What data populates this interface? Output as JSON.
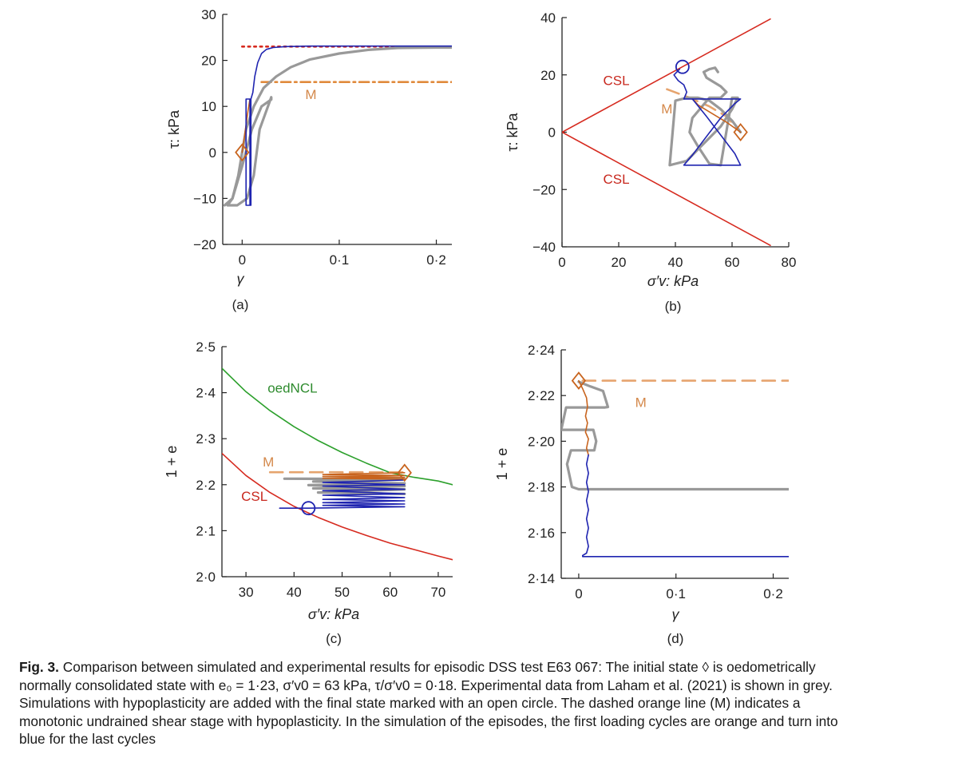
{
  "chart_data": [
    {
      "id": "a",
      "type": "line",
      "panel_label": "(a)",
      "xlabel": "γ",
      "ylabel": "τ: kPa",
      "xlim": [
        -0.02,
        0.216
      ],
      "ylim": [
        -20,
        30
      ],
      "xticks": [
        0,
        0.1,
        0.2
      ],
      "xtick_labels": [
        "0",
        "0·1",
        "0·2"
      ],
      "yticks": [
        -20,
        -10,
        0,
        10,
        20,
        30
      ],
      "ytick_labels": [
        "−20",
        "−10",
        "0",
        "10",
        "20",
        "30"
      ],
      "annotations": [
        {
          "text": "M",
          "x": 0.065,
          "y": 11.6,
          "color": "#d4884a"
        }
      ],
      "series": [
        {
          "name": "CSL (red dotted)",
          "color": "#d62a1f",
          "style": "dotted",
          "x": [
            0.0,
            0.216
          ],
          "y": [
            23,
            23
          ]
        },
        {
          "name": "M (orange dash-dot)",
          "color": "#e08a3c",
          "style": "dashdot",
          "x": [
            0.02,
            0.216
          ],
          "y": [
            15.3,
            15.3
          ]
        },
        {
          "name": "Experiment (grey)",
          "color": "#999999",
          "style": "solid",
          "x": [
            -0.018,
            -0.01,
            -0.004,
            0.0,
            0.004,
            0.012,
            0.022,
            0.035,
            0.05,
            0.07,
            0.1,
            0.13,
            0.16,
            0.2,
            0.216
          ],
          "y": [
            -11.5,
            -10,
            -5,
            0,
            5,
            10,
            14,
            16.5,
            18.5,
            20.2,
            21.5,
            22.3,
            22.7,
            22.8,
            22.8
          ]
        },
        {
          "name": "Experiment cycles (grey)",
          "color": "#999999",
          "style": "solid",
          "x": [
            -0.015,
            -0.005,
            0.005,
            0.012,
            0.018,
            0.03,
            0.03,
            0.02,
            0.01,
            0.0,
            -0.01,
            -0.015
          ],
          "y": [
            -11.5,
            -11.5,
            -10,
            -5,
            5,
            12,
            11.5,
            10,
            5,
            -3,
            -10,
            -11.5
          ]
        },
        {
          "name": "Simulation first cycles (orange)",
          "color": "#c8641e",
          "style": "solid",
          "x": [
            0.0,
            0.002,
            0.004,
            0.006,
            0.008
          ],
          "y": [
            0,
            3,
            6,
            9,
            11.6
          ]
        },
        {
          "name": "Simulation last cycles (blue)",
          "color": "#1f24b0",
          "style": "solid",
          "x": [
            0.004,
            0.004,
            0.008,
            0.008,
            0.004,
            0.004,
            0.009,
            0.009,
            0.011,
            0.013,
            0.016,
            0.02,
            0.025,
            0.032,
            0.045,
            0.07,
            0.1,
            0.15,
            0.216
          ],
          "y": [
            11.6,
            -11.5,
            -11.5,
            11.6,
            11.6,
            -11.5,
            -11.5,
            11.6,
            13,
            16.5,
            19.5,
            21.5,
            22.4,
            22.8,
            23,
            23.1,
            23.1,
            23.1,
            23.1
          ]
        }
      ],
      "markers": [
        {
          "type": "diamond",
          "x": 0.0,
          "y": 0,
          "color": "#c8641e"
        }
      ]
    },
    {
      "id": "b",
      "type": "line",
      "panel_label": "(b)",
      "xlabel": "σ′v: kPa",
      "ylabel": "τ: kPa",
      "xlim": [
        0,
        80
      ],
      "ylim": [
        -40,
        40
      ],
      "xticks": [
        0,
        20,
        40,
        60,
        80
      ],
      "xtick_labels": [
        "0",
        "20",
        "40",
        "60",
        "80"
      ],
      "yticks": [
        -40,
        -20,
        0,
        20,
        40
      ],
      "ytick_labels": [
        "−40",
        "−20",
        "0",
        "20",
        "40"
      ],
      "annotations": [
        {
          "text": "CSL",
          "x": 14.5,
          "y": 16.5,
          "color": "#c8281e"
        },
        {
          "text": "M",
          "x": 35,
          "y": 6.5,
          "color": "#d4884a"
        },
        {
          "text": "CSL",
          "x": 14.5,
          "y": -18,
          "color": "#c8281e"
        }
      ],
      "series": [
        {
          "name": "CSL upper",
          "color": "#d62a1f",
          "style": "solid",
          "x": [
            0,
            73.5
          ],
          "y": [
            0,
            39.5
          ]
        },
        {
          "name": "CSL lower",
          "color": "#d62a1f",
          "style": "solid",
          "x": [
            0,
            73.5
          ],
          "y": [
            0,
            -39.5
          ]
        },
        {
          "name": "M (orange dashed)",
          "color": "#e6a46e",
          "style": "dashed",
          "x": [
            37,
            45,
            52,
            58,
            63
          ],
          "y": [
            15,
            12,
            9,
            5.5,
            0
          ]
        },
        {
          "name": "Experiment (grey)",
          "color": "#999999",
          "style": "solid",
          "x": [
            63,
            60,
            56,
            52,
            48,
            44,
            40,
            38,
            40,
            44,
            50,
            56,
            60,
            62,
            60,
            56,
            52,
            48,
            45,
            46,
            52,
            56,
            58,
            56,
            51,
            50,
            52,
            54,
            55
          ],
          "y": [
            0,
            4,
            8,
            11,
            12,
            12,
            11,
            -11.5,
            -11,
            -10,
            -4,
            2,
            8,
            12,
            12,
            -11.5,
            -11,
            -5,
            0,
            5,
            12,
            12,
            14,
            16,
            19,
            21,
            22,
            22.5,
            21
          ]
        },
        {
          "name": "Simulation first cycles (orange)",
          "color": "#c8641e",
          "style": "solid",
          "x": [
            63,
            58,
            53,
            48,
            46
          ],
          "y": [
            0,
            3.5,
            6.5,
            9.5,
            11.6
          ]
        },
        {
          "name": "Simulation last cycles (blue)",
          "color": "#1f24b0",
          "style": "solid",
          "x": [
            46,
            51,
            56,
            61,
            63,
            61,
            56,
            51,
            46,
            43,
            46,
            51,
            56,
            61,
            63,
            61,
            56,
            51,
            46,
            43,
            44,
            43,
            41,
            39.5,
            41.5
          ],
          "y": [
            11.6,
            5.5,
            -1,
            -7.5,
            -11.5,
            -11.5,
            -11.5,
            -11.5,
            -11.5,
            -11.5,
            -8,
            -1.5,
            5,
            10,
            11.6,
            11.6,
            11.6,
            11.6,
            11.6,
            11.6,
            14,
            16.5,
            18,
            20,
            22
          ]
        }
      ],
      "markers": [
        {
          "type": "diamond",
          "x": 63,
          "y": 0,
          "color": "#c8641e"
        },
        {
          "type": "circle",
          "x": 42.5,
          "y": 22.8,
          "color": "#1f24b0"
        }
      ]
    },
    {
      "id": "c",
      "type": "line",
      "panel_label": "(c)",
      "xlabel": "σ′v: kPa",
      "ylabel": "1 + e",
      "xlim": [
        25,
        73
      ],
      "ylim": [
        2.0,
        2.5
      ],
      "xticks": [
        30,
        40,
        50,
        60,
        70
      ],
      "xtick_labels": [
        "30",
        "40",
        "50",
        "60",
        "70"
      ],
      "yticks": [
        2.0,
        2.1,
        2.2,
        2.3,
        2.4,
        2.5
      ],
      "ytick_labels": [
        "2·0",
        "2·1",
        "2·2",
        "2·3",
        "2·4",
        "2·5"
      ],
      "annotations": [
        {
          "text": "oedNCL",
          "x": 34.5,
          "y": 2.4,
          "color": "#2e8b2e"
        },
        {
          "text": "M",
          "x": 33.5,
          "y": 2.24,
          "color": "#d4884a"
        },
        {
          "text": "CSL",
          "x": 29,
          "y": 2.165,
          "color": "#c8281e"
        }
      ],
      "series": [
        {
          "name": "oedNCL",
          "color": "#2ca02c",
          "style": "solid",
          "x": [
            25,
            30,
            35,
            40,
            45,
            50,
            55,
            60,
            65,
            70,
            73
          ],
          "y": [
            2.453,
            2.402,
            2.361,
            2.326,
            2.296,
            2.27,
            2.247,
            2.226,
            2.216,
            2.208,
            2.2
          ]
        },
        {
          "name": "CSL",
          "color": "#d62a1f",
          "style": "solid",
          "x": [
            25,
            30,
            35,
            40,
            45,
            50,
            55,
            60,
            65,
            70,
            73
          ],
          "y": [
            2.268,
            2.22,
            2.183,
            2.153,
            2.129,
            2.108,
            2.09,
            2.073,
            2.059,
            2.045,
            2.037
          ]
        },
        {
          "name": "M (orange dashed)",
          "color": "#e6a46e",
          "style": "dashed",
          "x": [
            35,
            63
          ],
          "y": [
            2.227,
            2.227
          ]
        },
        {
          "name": "Experiment (grey)",
          "color": "#999999",
          "style": "solid",
          "x": [
            38,
            63,
            44,
            63,
            43,
            63,
            44,
            63,
            45,
            63
          ],
          "y": [
            2.213,
            2.212,
            2.207,
            2.203,
            2.199,
            2.197,
            2.192,
            2.19,
            2.183,
            2.18
          ]
        },
        {
          "name": "Simulation first cycles (orange)",
          "color": "#c8641e",
          "style": "solid",
          "x": [
            63,
            46,
            63,
            46,
            63,
            46,
            63
          ],
          "y": [
            2.226,
            2.222,
            2.22,
            2.218,
            2.216,
            2.214,
            2.212
          ]
        },
        {
          "name": "Simulation last cycles (blue)",
          "color": "#1f24b0",
          "style": "solid",
          "x": [
            63,
            46,
            63,
            46,
            63,
            46,
            63,
            46,
            63,
            46,
            63,
            46,
            63,
            46,
            63,
            43,
            37,
            43
          ],
          "y": [
            2.21,
            2.205,
            2.2,
            2.197,
            2.19,
            2.187,
            2.18,
            2.177,
            2.172,
            2.168,
            2.165,
            2.161,
            2.158,
            2.155,
            2.152,
            2.149,
            2.149,
            2.149
          ]
        }
      ],
      "markers": [
        {
          "type": "diamond",
          "x": 63,
          "y": 2.226,
          "color": "#c8641e"
        },
        {
          "type": "circle",
          "x": 43,
          "y": 2.149,
          "color": "#1f24b0"
        }
      ]
    },
    {
      "id": "d",
      "type": "line",
      "panel_label": "(d)",
      "xlabel": "γ",
      "ylabel": "1 + e",
      "xlim": [
        -0.018,
        0.216
      ],
      "ylim": [
        2.14,
        2.24
      ],
      "xticks": [
        0,
        0.1,
        0.2
      ],
      "xtick_labels": [
        "0",
        "0·1",
        "0·2"
      ],
      "yticks": [
        2.14,
        2.16,
        2.18,
        2.2,
        2.22,
        2.24
      ],
      "ytick_labels": [
        "2·14",
        "2·16",
        "2·18",
        "2·20",
        "2·22",
        "2·24"
      ],
      "annotations": [
        {
          "text": "M",
          "x": 0.058,
          "y": 2.215,
          "color": "#d4884a"
        }
      ],
      "series": [
        {
          "name": "M (orange dashed)",
          "color": "#e6a46e",
          "style": "dashed",
          "x": [
            0.004,
            0.216
          ],
          "y": [
            2.2265,
            2.2265
          ]
        },
        {
          "name": "Experiment (grey)",
          "color": "#999999",
          "style": "solid",
          "x": [
            0.0,
            0.012,
            0.025,
            0.03,
            0.027,
            -0.013,
            -0.018,
            0.002,
            0.015,
            0.018,
            0.016,
            -0.008,
            -0.012,
            -0.007,
            0.0,
            0.216
          ],
          "y": [
            2.226,
            2.224,
            2.222,
            2.215,
            2.2148,
            2.2148,
            2.205,
            2.205,
            2.205,
            2.2,
            2.196,
            2.196,
            2.19,
            2.18,
            2.179,
            2.179
          ]
        },
        {
          "name": "Simulation first cycles (orange)",
          "color": "#c8641e",
          "style": "solid",
          "x": [
            0.0,
            0.004,
            0.008,
            0.009,
            0.007,
            0.009,
            0.007,
            0.01,
            0.008,
            0.01
          ],
          "y": [
            2.2265,
            2.223,
            2.219,
            2.215,
            2.211,
            2.208,
            2.204,
            2.201,
            2.197,
            2.194
          ]
        },
        {
          "name": "Simulation last cycles (blue)",
          "color": "#1f24b0",
          "style": "solid",
          "x": [
            0.01,
            0.008,
            0.01,
            0.008,
            0.01,
            0.008,
            0.01,
            0.008,
            0.01,
            0.008,
            0.01,
            0.008,
            0.004,
            0.004,
            0.216
          ],
          "y": [
            2.194,
            2.19,
            2.186,
            2.182,
            2.178,
            2.174,
            2.17,
            2.166,
            2.162,
            2.158,
            2.154,
            2.151,
            2.15,
            2.1495,
            2.1495
          ]
        }
      ],
      "markers": [
        {
          "type": "diamond",
          "x": 0.0,
          "y": 2.2265,
          "color": "#c8641e"
        }
      ]
    }
  ],
  "caption": {
    "fig_label": "Fig. 3.",
    "line1": "Comparison between simulated and experimental results for episodic DSS test E63 067: The initial state ◊ is oedometrically",
    "line2": "normally consolidated state with e₀ = 1·23, σ′v0 = 63 kPa, τ/σ′v0 = 0·18. Experimental data from Laham et al. (2021) is shown in grey.",
    "line3": "Simulations with hypoplasticity are added with the final state marked with an open circle. The dashed orange line (M) indicates a",
    "line4": "monotonic undrained shear stage with hypoplasticity. In the simulation of the episodes, the first loading cycles are orange and turn into",
    "line5": "blue for the last cycles"
  }
}
